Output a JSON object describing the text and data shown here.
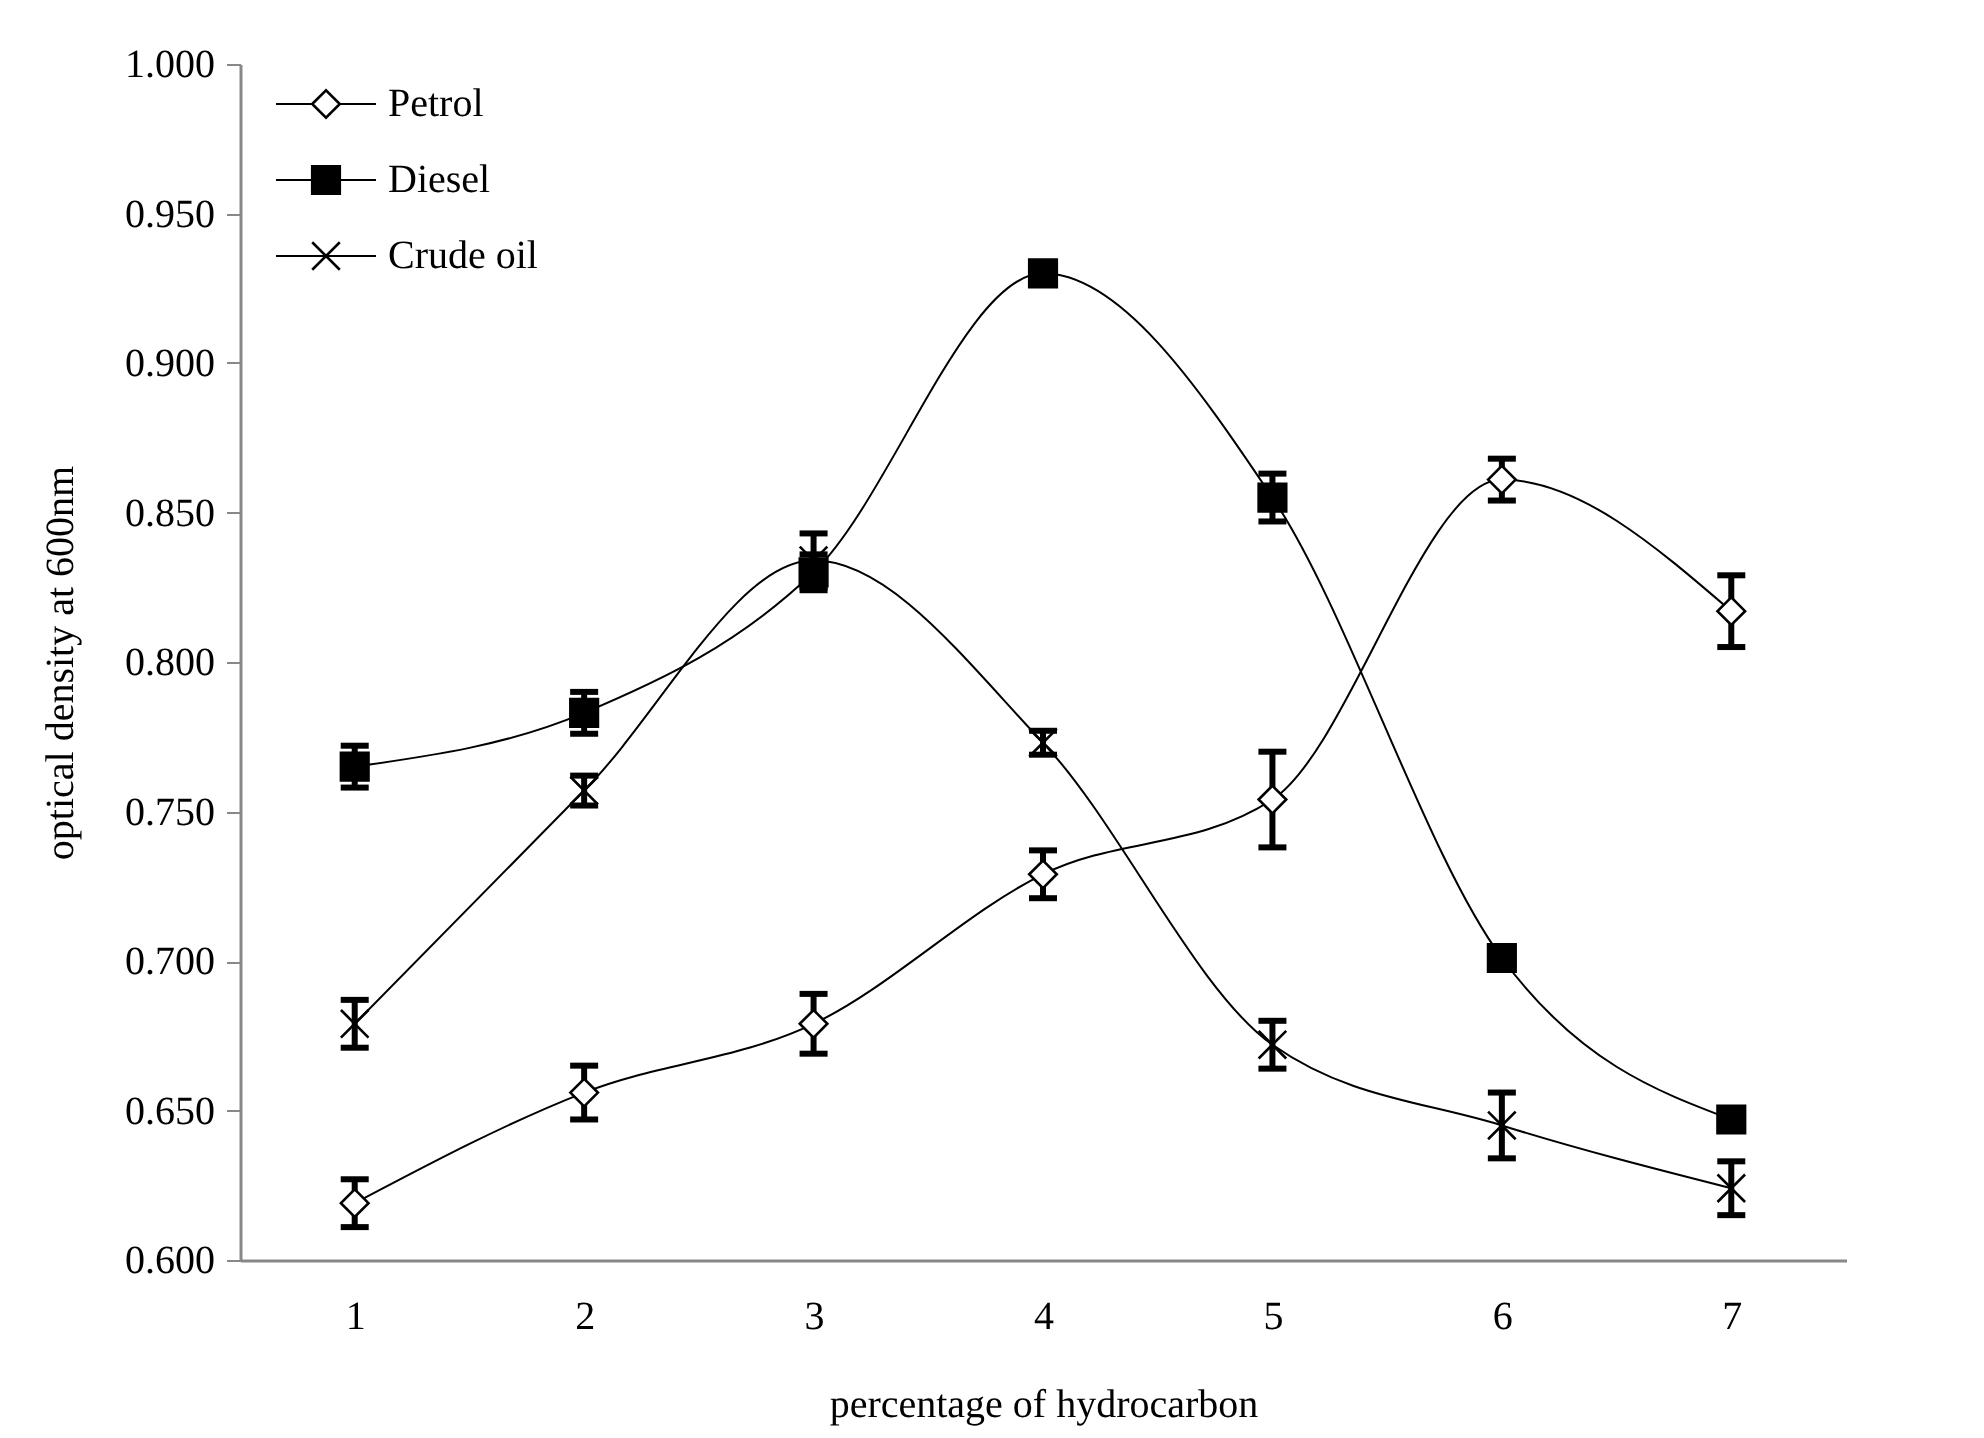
{
  "chart_data": {
    "type": "line",
    "xlabel": "percentage of hydrocarbon",
    "ylabel": "optical density at 600nm",
    "categories": [
      "1",
      "2",
      "3",
      "4",
      "5",
      "6",
      "7"
    ],
    "series": [
      {
        "name": "Petrol",
        "color": "#000000",
        "marker": "diamond",
        "values": [
          0.619,
          0.656,
          0.679,
          0.729,
          0.754,
          0.861,
          0.817
        ],
        "errors": [
          0.008,
          0.009,
          0.01,
          0.008,
          0.016,
          0.007,
          0.012
        ]
      },
      {
        "name": "Diesel",
        "color": "#000000",
        "marker": "square",
        "values": [
          0.765,
          0.783,
          0.83,
          0.93,
          0.855,
          0.701,
          0.647
        ],
        "errors": [
          0.007,
          0.007,
          0.006,
          null,
          0.008,
          null,
          null
        ]
      },
      {
        "name": "Crude oil",
        "color": "#000000",
        "marker": "cross",
        "values": [
          0.679,
          0.757,
          0.834,
          0.773,
          0.672,
          0.645,
          0.624
        ],
        "errors": [
          0.008,
          0.005,
          0.009,
          0.004,
          0.008,
          0.011,
          0.009
        ]
      }
    ],
    "ylim": [
      0.6,
      1.0
    ],
    "yticks": [
      {
        "value": 0.6,
        "label": "0.600"
      },
      {
        "value": 0.65,
        "label": "0.650"
      },
      {
        "value": 0.7,
        "label": "0.700"
      },
      {
        "value": 0.75,
        "label": "0.750"
      },
      {
        "value": 0.8,
        "label": "0.800"
      },
      {
        "value": 0.85,
        "label": "0.850"
      },
      {
        "value": 0.9,
        "label": "0.900"
      },
      {
        "value": 0.95,
        "label": "0.950"
      },
      {
        "value": 1.0,
        "label": "1.000"
      }
    ],
    "legend": "top left",
    "grid": false
  }
}
